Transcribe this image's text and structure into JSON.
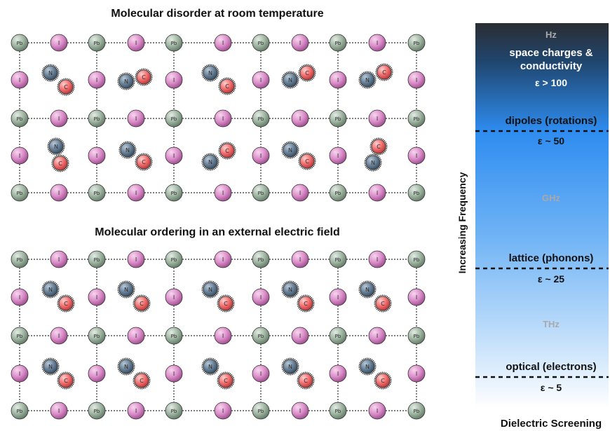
{
  "panels": {
    "top_title": "Molecular disorder at room temperature",
    "bottom_title": "Molecular ordering in an external electric field"
  },
  "atoms": {
    "lead": "Pb",
    "iodine": "I",
    "nitrogen": "N",
    "carbon": "C"
  },
  "spectrum": {
    "axis_label": "Increasing Frequency",
    "footer": "Dielectric Screening",
    "hz": "Hz",
    "space_charges_line1": "space charges &",
    "space_charges_line2": "conductivity",
    "eps_hz": "ε > 100",
    "dipoles": "dipoles (rotations)",
    "eps_dipoles": "ε ~ 50",
    "ghz": "GHz",
    "lattice": "lattice (phonons)",
    "eps_lattice": "ε ~ 25",
    "thz": "THz",
    "optical": "optical (electrons)",
    "eps_optical": "ε ~ 5"
  },
  "colors": {
    "lead_fill": "#9db3a0",
    "iodine_fill": "#d98cc8",
    "nitrogen_fill": "#667f96",
    "carbon_fill": "#f06b6b",
    "gradient_top": "#2b2d33",
    "gradient_mid": "#2e8cf0",
    "gradient_bottom": "#ffffff"
  }
}
